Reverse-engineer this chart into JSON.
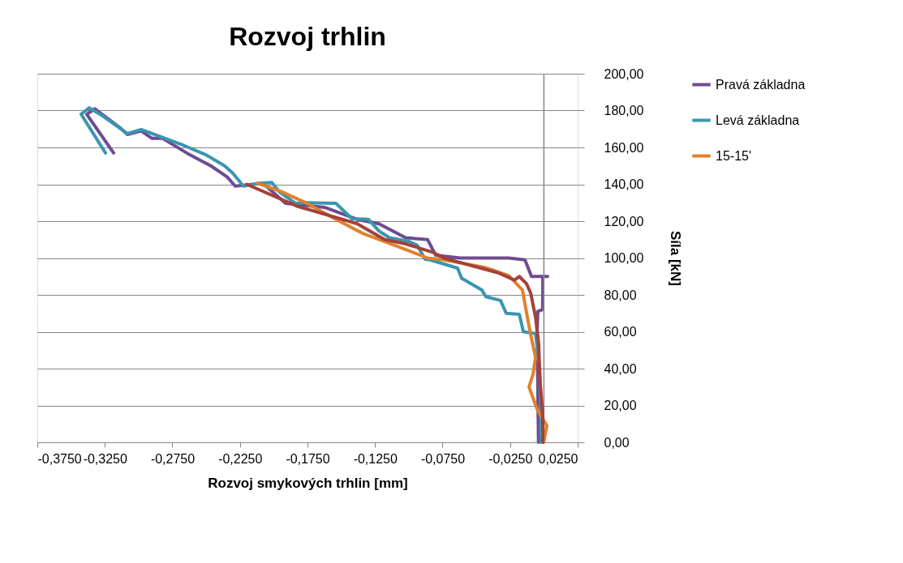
{
  "chart_data": {
    "type": "line",
    "title": "Rozvoj trhlin",
    "xlabel": "Rozvoj smykových trhlin [mm]",
    "ylabel": "Síla [kN]",
    "xlim": [
      -0.375,
      0.025
    ],
    "ylim": [
      0,
      200
    ],
    "xticks": [
      {
        "value": -0.375,
        "label": "-0,3750"
      },
      {
        "value": -0.325,
        "label": "-0,3250"
      },
      {
        "value": -0.275,
        "label": "-0,2750"
      },
      {
        "value": -0.225,
        "label": "-0,2250"
      },
      {
        "value": -0.175,
        "label": "-0,1750"
      },
      {
        "value": -0.125,
        "label": "-0,1250"
      },
      {
        "value": -0.075,
        "label": "-0,0750"
      },
      {
        "value": -0.025,
        "label": "-0,0250"
      },
      {
        "value": 0.025,
        "label": "0,0250"
      }
    ],
    "yticks": [
      {
        "value": 0,
        "label": "0,00"
      },
      {
        "value": 20,
        "label": "20,00"
      },
      {
        "value": 40,
        "label": "40,00"
      },
      {
        "value": 60,
        "label": "60,00"
      },
      {
        "value": 80,
        "label": "80,00"
      },
      {
        "value": 100,
        "label": "100,00"
      },
      {
        "value": 120,
        "label": "120,00"
      },
      {
        "value": 140,
        "label": "140,00"
      },
      {
        "value": 160,
        "label": "160,00"
      },
      {
        "value": 180,
        "label": "180,00"
      },
      {
        "value": 200,
        "label": "200,00"
      }
    ],
    "grid": "y",
    "legend": "right",
    "marker": "none",
    "line_style": "solid",
    "series": [
      {
        "name": "Pravá základna",
        "color": "#6e4c91",
        "x": [
          -0.004,
          -0.0045,
          -0.005,
          -0.0045,
          -0.001,
          -0.0008,
          -0.0008,
          0.0028,
          -0.0092,
          -0.014,
          -0.0261,
          -0.04,
          -0.0621,
          -0.0801,
          -0.0861,
          -0.1023,
          -0.1221,
          -0.1384,
          -0.1624,
          -0.1912,
          -0.208,
          -0.2285,
          -0.2345,
          -0.2465,
          -0.2621,
          -0.2825,
          -0.2903,
          -0.2981,
          -0.3083,
          -0.3143,
          -0.3324,
          -0.3384,
          -0.3185
        ],
        "values": [
          0,
          30,
          60,
          71,
          72,
          80,
          90,
          90,
          90,
          99,
          100,
          100,
          100,
          101.5,
          110,
          111,
          118.6,
          121,
          127.5,
          129.7,
          140.6,
          139,
          144,
          150,
          156,
          165,
          165,
          169,
          167,
          171,
          181,
          178,
          157
        ]
      },
      {
        "name": "Levá základna",
        "color": "#3a96b0",
        "x": [
          -0.002,
          -0.003,
          -0.0062,
          -0.0152,
          -0.0182,
          -0.0279,
          -0.0321,
          -0.0429,
          -0.0459,
          -0.0609,
          -0.0639,
          -0.0843,
          -0.0879,
          -0.0939,
          -0.0999,
          -0.1143,
          -0.1221,
          -0.13,
          -0.142,
          -0.154,
          -0.1762,
          -0.184,
          -0.196,
          -0.2014,
          -0.2104,
          -0.2224,
          -0.2303,
          -0.2363,
          -0.2501,
          -0.2663,
          -0.2843,
          -0.2981,
          -0.3083,
          -0.3264,
          -0.3366,
          -0.3426,
          -0.3245
        ],
        "values": [
          0,
          40,
          59,
          60,
          69.5,
          70,
          77,
          79,
          82.6,
          89,
          94.5,
          99,
          99.3,
          107,
          109,
          111,
          114.7,
          121,
          121.3,
          129.7,
          130,
          129.7,
          136,
          141,
          140.6,
          139,
          146,
          150,
          156,
          161,
          166,
          169.7,
          167.5,
          177,
          181.5,
          178,
          157
        ]
      },
      {
        "name": "15-15'",
        "color": "#e0812f",
        "x": [
          -0.0002,
          0.0022,
          -0.005,
          -0.011,
          -0.008,
          -0.0062,
          -0.0104,
          -0.014,
          -0.0158,
          -0.0261,
          -0.0441,
          -0.0741,
          -0.0861,
          -0.1179,
          -0.1342,
          -0.154,
          -0.1762,
          -0.1942,
          -0.2122
        ],
        "values": [
          0,
          9,
          18,
          30,
          37,
          46,
          60.7,
          75,
          82.6,
          90.5,
          95,
          99,
          100,
          109,
          113.4,
          121,
          130,
          136,
          140.6
        ]
      },
      {
        "color": "#a5403a",
        "x": [
          -0.0008,
          -0.0008,
          -0.0032,
          -0.0038,
          -0.0062,
          -0.0098,
          -0.0128,
          -0.0182,
          -0.0218,
          -0.0339,
          -0.0543,
          -0.0741,
          -0.0819,
          -0.1023,
          -0.1179,
          -0.1384,
          -0.154,
          -0.1822,
          -0.22
        ],
        "values": [
          0,
          13.6,
          37,
          53,
          68,
          81,
          86,
          90,
          88,
          92,
          96,
          100,
          103,
          107.7,
          110,
          118.7,
          122,
          128,
          140
        ]
      }
    ]
  }
}
